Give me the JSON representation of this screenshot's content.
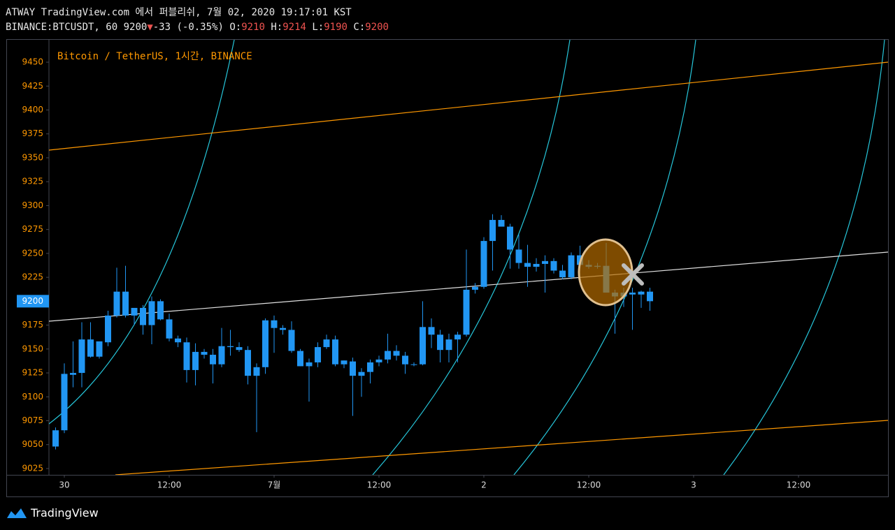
{
  "header": {
    "line1": "ATWAY TradingView.com 에서 퍼블리쉬, 7월 02, 2020 19:17:01 KST",
    "symbol": "BINANCE:BTCUSDT, 60",
    "change": "-33 (-0.35%)",
    "o_label": "O:",
    "h_label": "H:",
    "l_label": "L:",
    "c_label": "C:"
  },
  "footer": {
    "brand": "TradingView"
  },
  "chart_data": {
    "type": "candlestick",
    "title": "Bitcoin / TetherUS, 1시간, BINANCE",
    "color": "#2196f3",
    "x": [
      -1,
      0,
      1,
      2,
      3,
      4,
      5,
      6,
      7,
      8,
      9,
      10,
      11,
      12,
      13,
      14,
      15,
      16,
      17,
      18,
      19,
      20,
      21,
      22,
      23,
      24,
      25,
      26,
      27,
      28,
      29,
      30,
      31,
      32,
      33,
      34,
      35,
      36,
      37,
      38,
      39,
      40,
      41,
      42,
      43,
      44,
      45,
      46,
      47,
      48,
      49,
      50,
      51,
      52,
      53,
      54,
      55,
      56,
      57,
      58,
      59,
      60,
      61,
      62,
      63,
      64,
      65,
      66,
      67
    ],
    "open": [
      9048,
      9065,
      9123,
      9125,
      9160,
      9142,
      9157,
      9185,
      9210,
      9185,
      9193,
      9175,
      9200,
      9181,
      9161,
      9157,
      9128,
      9147,
      9144,
      9134,
      9153,
      9152,
      9149,
      9122,
      9131,
      9180,
      9172,
      9170,
      9148,
      9132,
      9136,
      9152,
      9160,
      9134,
      9137,
      9122,
      9126,
      9136,
      9139,
      9148,
      9143,
      9134,
      9134,
      9173,
      9165,
      9149,
      9160,
      9165,
      9212,
      9215,
      9263,
      9285,
      9278,
      9254,
      9240,
      9236,
      9239,
      9242,
      9232,
      9225,
      9248,
      9238,
      9236,
      9237,
      9209,
      9205,
      9209,
      9207,
      9210
    ],
    "high": [
      9068,
      9135,
      9158,
      9178,
      9178,
      9155,
      9190,
      9235,
      9237,
      9190,
      9196,
      9205,
      9202,
      9187,
      9164,
      9162,
      9156,
      9150,
      9150,
      9172,
      9170,
      9157,
      9153,
      9135,
      9182,
      9185,
      9175,
      9179,
      9150,
      9140,
      9157,
      9165,
      9164,
      9138,
      9141,
      9130,
      9139,
      9143,
      9166,
      9154,
      9147,
      9136,
      9200,
      9182,
      9170,
      9166,
      9168,
      9254,
      9219,
      9267,
      9291,
      9290,
      9281,
      9270,
      9259,
      9245,
      9248,
      9245,
      9238,
      9251,
      9258,
      9243,
      9240,
      9261,
      9212,
      9214,
      9214,
      9211,
      9214
    ],
    "low": [
      9045,
      9062,
      9110,
      9110,
      9141,
      9140,
      9153,
      9183,
      9183,
      9175,
      9165,
      9155,
      9180,
      9158,
      9152,
      9115,
      9112,
      9140,
      9114,
      9131,
      9143,
      9147,
      9113,
      9063,
      9124,
      9146,
      9165,
      9146,
      9132,
      9095,
      9131,
      9150,
      9132,
      9130,
      9080,
      9100,
      9114,
      9132,
      9135,
      9138,
      9124,
      9132,
      9133,
      9151,
      9136,
      9136,
      9136,
      9163,
      9208,
      9213,
      9232,
      9278,
      9234,
      9234,
      9215,
      9231,
      9209,
      9229,
      9223,
      9223,
      9237,
      9234,
      9234,
      9209,
      9166,
      9194,
      9170,
      9193,
      9190
    ],
    "close": [
      9065,
      9124,
      9125,
      9160,
      9142,
      9158,
      9185,
      9210,
      9185,
      9193,
      9175,
      9200,
      9181,
      9161,
      9157,
      9128,
      9147,
      9144,
      9134,
      9153,
      9152,
      9149,
      9122,
      9131,
      9180,
      9172,
      9170,
      9148,
      9132,
      9136,
      9152,
      9160,
      9134,
      9138,
      9122,
      9126,
      9136,
      9139,
      9148,
      9143,
      9134,
      9134,
      9173,
      9165,
      9149,
      9160,
      9165,
      9212,
      9215,
      9263,
      9285,
      9278,
      9254,
      9240,
      9236,
      9239,
      9242,
      9232,
      9225,
      9248,
      9238,
      9236,
      9237,
      9209,
      9205,
      9209,
      9207,
      9210,
      9200
    ],
    "xlim": [
      -1.76,
      94.24
    ],
    "xticks": [
      {
        "value": 0,
        "label": "30"
      },
      {
        "value": 12,
        "label": "12:00"
      },
      {
        "value": 24,
        "label": "7월"
      },
      {
        "value": 36,
        "label": "12:00"
      },
      {
        "value": 48,
        "label": "2"
      },
      {
        "value": 60,
        "label": "12:00"
      },
      {
        "value": 72,
        "label": "3"
      },
      {
        "value": 84,
        "label": "12:00"
      }
    ],
    "ylim": [
      9018.4,
      9473.4
    ],
    "yticks": [
      9025,
      9050,
      9075,
      9100,
      9125,
      9150,
      9175,
      9200,
      9225,
      9250,
      9275,
      9300,
      9325,
      9350,
      9375,
      9400,
      9425,
      9450
    ],
    "grid": false
  }
}
